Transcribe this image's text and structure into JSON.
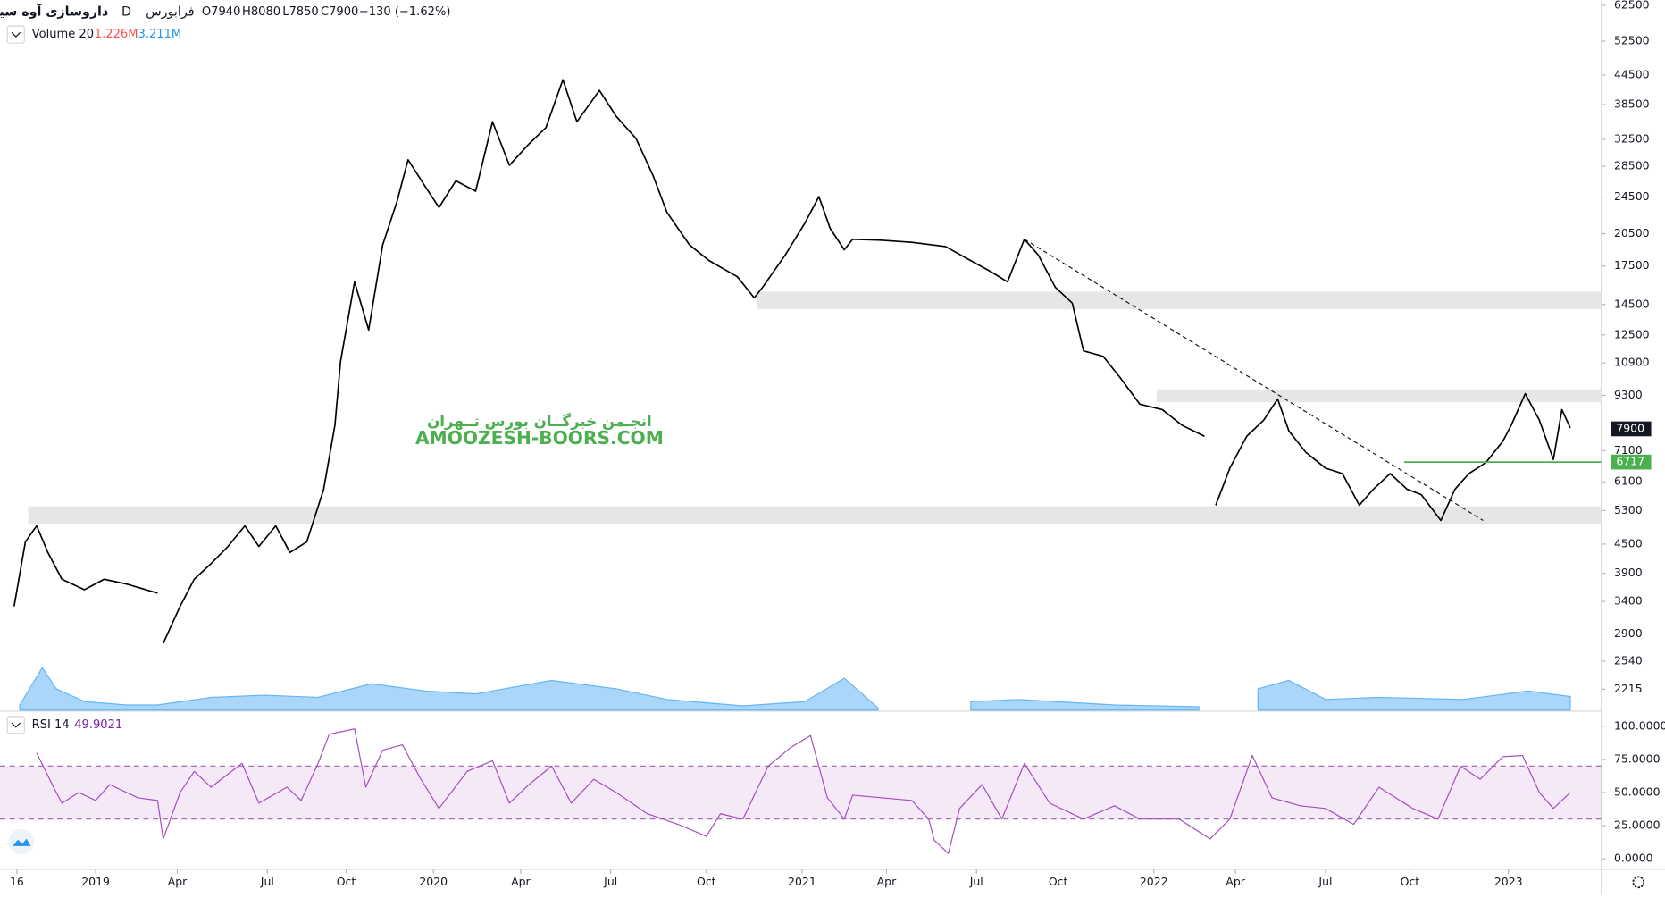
{
  "header": {
    "symbol": "داروسازی آوه سینا",
    "interval": "D",
    "exchange": "فرابورس",
    "ohlc": [
      "O7940",
      "H8080",
      "L7850",
      "C7900"
    ],
    "change": "−130 (−1.62%)"
  },
  "watermark": {
    "line1": "انجـمن خبرگــان بورس تــهران",
    "line2": "AMOOZESH-BOORS.COM"
  },
  "chart_data": [
    {
      "type": "line",
      "log_scale": true,
      "grid": false,
      "color": "#000000",
      "x": [
        -2.9,
        -2.5,
        -2.1,
        -1.7,
        -1.2,
        -0.4,
        0.3,
        1.1,
        2.2,
        2.3,
        2.4,
        3.0,
        3.5,
        4.1,
        4.7,
        5.3,
        5.8,
        6.4,
        6.9,
        7.5,
        8.1,
        8.5,
        8.7,
        9.2,
        9.7,
        10.2,
        10.7,
        11.1,
        11.7,
        12.2,
        12.8,
        13.5,
        14.1,
        14.7,
        15.4,
        16.0,
        16.6,
        17.1,
        17.9,
        18.5,
        19.2,
        19.8,
        20.3,
        21.1,
        21.8,
        22.8,
        23.4,
        23.7,
        24.5,
        25.2,
        25.7,
        26.1,
        26.6,
        26.9,
        27.9,
        29.0,
        30.2,
        31.1,
        31.8,
        32.4,
        33.0,
        33.5,
        34.1,
        34.7,
        35.1,
        35.8,
        36.4,
        37.1,
        37.9,
        38.6,
        39.4,
        39.6,
        39.8,
        40.3,
        40.9,
        41.5,
        42.0,
        42.4,
        43.0,
        43.7,
        44.3,
        44.9,
        45.4,
        46.0,
        46.6,
        47.1,
        47.8,
        48.3,
        48.8,
        49.4,
        50.0,
        50.3,
        50.8,
        51.3,
        51.8,
        52.1,
        52.4
      ],
      "values": [
        3320,
        4550,
        4920,
        4320,
        3790,
        3600,
        3790,
        3700,
        3540,
        null,
        2770,
        3320,
        3790,
        4090,
        4450,
        4920,
        4450,
        4920,
        4320,
        4550,
        5880,
        8040,
        10980,
        16200,
        12810,
        19410,
        23920,
        29400,
        25850,
        23300,
        26540,
        25220,
        35400,
        28640,
        31770,
        34420,
        43480,
        35400,
        41270,
        36330,
        32620,
        27260,
        22740,
        19410,
        17960,
        16610,
        14980,
        15780,
        18450,
        21580,
        24560,
        21030,
        18950,
        19950,
        19850,
        19650,
        19250,
        17960,
        17040,
        16200,
        19950,
        18450,
        15780,
        14600,
        11560,
        11260,
        10150,
        8910,
        8680,
        8040,
        7620,
        null,
        5440,
        6520,
        7620,
        8240,
        9140,
        7820,
        7050,
        6520,
        6350,
        5440,
        5880,
        6350,
        5880,
        5730,
        5050,
        5880,
        6350,
        6700,
        7430,
        8040,
        9380,
        8240,
        6800,
        8680,
        7940
      ],
      "xlim": [
        -3.4,
        53.5
      ],
      "ylim": [
        2000,
        64000
      ],
      "yticks": [
        62500,
        52500,
        44500,
        38500,
        32500,
        28500,
        24500,
        20500,
        17500,
        14500,
        12500,
        10900,
        9300,
        7100,
        6100,
        5300,
        4500,
        3900,
        3400,
        2900,
        2540,
        2215
      ],
      "zones": [
        {
          "start": 23.5,
          "from": 14170,
          "to": 15440
        },
        {
          "start": 37.7,
          "from": 9000,
          "to": 9580
        },
        {
          "start": -2.4,
          "from": 4970,
          "to": 5410
        }
      ],
      "trendline": {
        "x": [
          33.0,
          49.3
        ],
        "values": [
          19950,
          5050
        ]
      },
      "level": {
        "start": 46.5,
        "value": 6717,
        "color": "#4caf50"
      },
      "last_price": 7900
    },
    {
      "type": "area",
      "title": "Volume 20",
      "legend_values": [
        "1.226M",
        "3.211M"
      ],
      "legend_colors": [
        "#ef5350",
        "#2196f3"
      ],
      "color": "#64b5f6",
      "x": [
        -2.7,
        -1.9,
        -1.4,
        -0.4,
        1.1,
        2.2,
        4.1,
        6.0,
        7.9,
        9.8,
        11.7,
        13.5,
        16.2,
        18.5,
        20.3,
        23.0,
        25.2,
        26.6,
        27.8,
        28.5,
        31.1,
        32.8,
        36.2,
        39.2,
        39.6,
        41.3,
        42.4,
        43.7,
        45.6,
        48.6,
        50.9,
        52.4
      ],
      "values": [
        1.2,
        10,
        5,
        2,
        1.2,
        1.2,
        3,
        3.5,
        3,
        6.2,
        4.5,
        3.8,
        7,
        5,
        2.5,
        1,
        2,
        7.5,
        0.5,
        null,
        2,
        2.5,
        1.2,
        0.8,
        null,
        5,
        7,
        2.5,
        3,
        2.5,
        4.5,
        3.2
      ],
      "xlim": [
        -3.4,
        53.5
      ],
      "ylim": [
        0,
        40
      ]
    },
    {
      "type": "line",
      "title": "RSI 14",
      "legend_value": 49.9021,
      "color": "#a54cbf",
      "band": [
        30,
        70
      ],
      "x": [
        -2.1,
        -1.5,
        -1.2,
        -0.6,
        0.0,
        0.5,
        1.5,
        2.2,
        2.4,
        3.0,
        3.5,
        4.1,
        5.2,
        5.8,
        6.8,
        7.3,
        7.9,
        8.3,
        9.2,
        9.6,
        10.2,
        10.9,
        11.5,
        12.2,
        13.2,
        14.1,
        14.7,
        15.4,
        16.2,
        16.9,
        17.7,
        18.5,
        19.6,
        20.7,
        21.7,
        22.2,
        23.0,
        23.4,
        23.9,
        24.7,
        25.4,
        26.0,
        26.6,
        26.9,
        29.0,
        29.6,
        29.8,
        30.3,
        30.7,
        31.5,
        32.2,
        33.0,
        33.9,
        35.1,
        36.2,
        37.1,
        38.5,
        39.6,
        40.3,
        41.1,
        41.8,
        42.8,
        43.7,
        44.7,
        45.6,
        46.8,
        47.7,
        48.5,
        49.2,
        50.0,
        50.7,
        51.3,
        51.8,
        52.4
      ],
      "values": [
        80,
        54,
        42,
        50,
        44,
        56,
        46,
        44,
        15,
        50,
        66,
        54,
        72,
        42,
        54,
        44,
        72,
        94,
        98,
        54,
        82,
        86,
        62,
        38,
        66,
        74,
        42,
        56,
        70,
        42,
        60,
        50,
        34,
        26,
        17,
        34,
        30,
        48,
        70,
        84,
        93,
        46,
        30,
        48,
        44,
        30,
        14,
        4,
        38,
        56,
        30,
        72,
        42,
        30,
        40,
        30,
        30,
        15,
        30,
        78,
        46,
        40,
        38,
        26,
        54,
        38,
        30,
        70,
        60,
        77,
        78,
        50,
        38,
        50
      ],
      "xlim": [
        -3.4,
        53.5
      ],
      "ylim": [
        -8,
        109
      ],
      "yticks": [
        {
          "value": 100,
          "label": "100.0000"
        },
        {
          "value": 75,
          "label": "75.0000"
        },
        {
          "value": 50,
          "label": "50.0000"
        },
        {
          "value": 25,
          "label": "25.0000"
        },
        {
          "value": 0,
          "label": "0.0000"
        }
      ],
      "xticks": [
        {
          "value": -2.8,
          "label": "16"
        },
        {
          "value": 0,
          "label": "2019"
        },
        {
          "value": 2.9,
          "label": "Apr"
        },
        {
          "value": 6.1,
          "label": "Jul"
        },
        {
          "value": 8.9,
          "label": "Oct"
        },
        {
          "value": 12.0,
          "label": "2020"
        },
        {
          "value": 15.1,
          "label": "Apr"
        },
        {
          "value": 18.3,
          "label": "Jul"
        },
        {
          "value": 21.7,
          "label": "Oct"
        },
        {
          "value": 25.1,
          "label": "2021"
        },
        {
          "value": 28.1,
          "label": "Apr"
        },
        {
          "value": 31.3,
          "label": "Jul"
        },
        {
          "value": 34.2,
          "label": "Oct"
        },
        {
          "value": 37.6,
          "label": "2022"
        },
        {
          "value": 40.5,
          "label": "Apr"
        },
        {
          "value": 43.7,
          "label": "Jul"
        },
        {
          "value": 46.7,
          "label": "Oct"
        },
        {
          "value": 50.2,
          "label": "2023"
        }
      ]
    }
  ]
}
